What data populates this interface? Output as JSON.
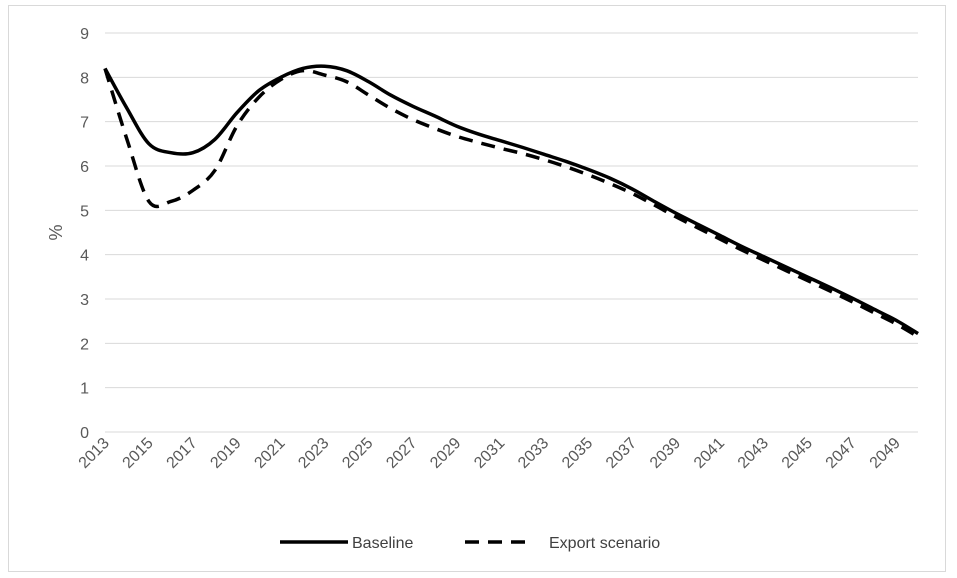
{
  "chart_data": {
    "type": "line",
    "title": "",
    "xlabel": "",
    "ylabel": "%",
    "ylim": [
      0,
      9
    ],
    "yticks": [
      0,
      1,
      2,
      3,
      4,
      5,
      6,
      7,
      8,
      9
    ],
    "x": [
      2013,
      2014,
      2015,
      2016,
      2017,
      2018,
      2019,
      2020,
      2021,
      2022,
      2023,
      2024,
      2025,
      2026,
      2027,
      2028,
      2029,
      2030,
      2031,
      2032,
      2033,
      2034,
      2035,
      2036,
      2037,
      2038,
      2039,
      2040,
      2041,
      2042,
      2043,
      2044,
      2045,
      2046,
      2047,
      2048,
      2049,
      2050
    ],
    "xtick_labels": [
      "2013",
      "2015",
      "2017",
      "2019",
      "2021",
      "2023",
      "2025",
      "2027",
      "2029",
      "2031",
      "2033",
      "2035",
      "2037",
      "2039",
      "2041",
      "2043",
      "2045",
      "2047",
      "2049"
    ],
    "grid": "horizontal",
    "legend_position": "bottom",
    "series": [
      {
        "name": "Baseline",
        "style": "solid",
        "color": "#000000",
        "values": [
          8.2,
          7.3,
          6.5,
          6.3,
          6.3,
          6.6,
          7.2,
          7.7,
          8.0,
          8.2,
          8.25,
          8.15,
          7.9,
          7.6,
          7.35,
          7.13,
          6.9,
          6.72,
          6.57,
          6.42,
          6.26,
          6.1,
          5.92,
          5.72,
          5.48,
          5.2,
          4.93,
          4.68,
          4.43,
          4.18,
          3.95,
          3.72,
          3.49,
          3.26,
          3.02,
          2.77,
          2.52,
          2.22
        ]
      },
      {
        "name": "Export scenario",
        "style": "dashed",
        "color": "#000000",
        "values": [
          8.2,
          6.6,
          5.2,
          5.2,
          5.45,
          5.9,
          6.9,
          7.55,
          7.95,
          8.15,
          8.05,
          7.9,
          7.6,
          7.3,
          7.05,
          6.85,
          6.67,
          6.53,
          6.4,
          6.28,
          6.14,
          5.98,
          5.8,
          5.6,
          5.38,
          5.12,
          4.85,
          4.6,
          4.35,
          4.1,
          3.87,
          3.64,
          3.41,
          3.18,
          2.94,
          2.69,
          2.44,
          2.15
        ]
      }
    ]
  }
}
